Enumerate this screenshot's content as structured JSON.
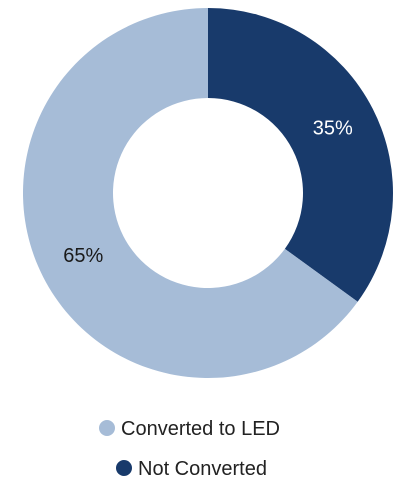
{
  "chart_data": {
    "type": "pie",
    "donut": true,
    "slices": [
      {
        "label": "Not Converted",
        "value": 35,
        "display": "35%",
        "color": "#183A6B",
        "label_color": "#ffffff"
      },
      {
        "label": "Converted to LED",
        "value": 65,
        "display": "65%",
        "color": "#A6BCD7",
        "label_color": "#1a1a1a"
      }
    ],
    "legend": {
      "placement": "bottom",
      "items": [
        {
          "label": "Converted to LED",
          "color": "#A6BCD7"
        },
        {
          "label": "Not Converted",
          "color": "#183A6B"
        }
      ]
    }
  }
}
